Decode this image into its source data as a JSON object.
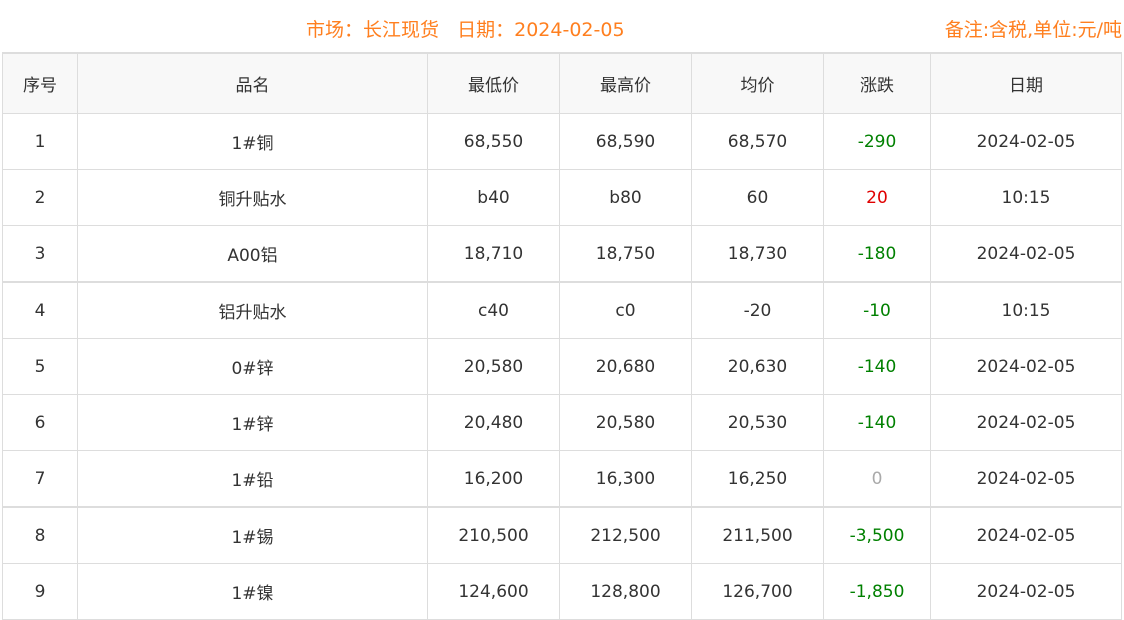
{
  "header": {
    "title": "市场：长江现货   日期：2024-02-05",
    "note": "备注:含税,单位:元/吨"
  },
  "colors": {
    "accent": "#ff7f1f",
    "down": "#008000",
    "up": "#e00000",
    "flat": "#aaaaaa"
  },
  "columns": [
    "序号",
    "品名",
    "最低价",
    "最高价",
    "均价",
    "涨跌",
    "日期"
  ],
  "rows": [
    {
      "no": "1",
      "name": "1#铜",
      "low": "68,550",
      "high": "68,590",
      "avg": "68,570",
      "change": "-290",
      "trend": "down",
      "date": "2024-02-05"
    },
    {
      "no": "2",
      "name": "铜升贴水",
      "low": "b40",
      "high": "b80",
      "avg": "60",
      "change": "20",
      "trend": "up",
      "date": "10:15"
    },
    {
      "no": "3",
      "name": "A00铝",
      "low": "18,710",
      "high": "18,750",
      "avg": "18,730",
      "change": "-180",
      "trend": "down",
      "date": "2024-02-05"
    },
    {
      "no": "4",
      "name": "铝升贴水",
      "low": "c40",
      "high": "c0",
      "avg": "-20",
      "change": "-10",
      "trend": "down",
      "date": "10:15"
    },
    {
      "no": "5",
      "name": "0#锌",
      "low": "20,580",
      "high": "20,680",
      "avg": "20,630",
      "change": "-140",
      "trend": "down",
      "date": "2024-02-05"
    },
    {
      "no": "6",
      "name": "1#锌",
      "low": "20,480",
      "high": "20,580",
      "avg": "20,530",
      "change": "-140",
      "trend": "down",
      "date": "2024-02-05"
    },
    {
      "no": "7",
      "name": "1#铅",
      "low": "16,200",
      "high": "16,300",
      "avg": "16,250",
      "change": "0",
      "trend": "flat",
      "date": "2024-02-05"
    },
    {
      "no": "8",
      "name": "1#锡",
      "low": "210,500",
      "high": "212,500",
      "avg": "211,500",
      "change": "-3,500",
      "trend": "down",
      "date": "2024-02-05"
    },
    {
      "no": "9",
      "name": "1#镍",
      "low": "124,600",
      "high": "128,800",
      "avg": "126,700",
      "change": "-1,850",
      "trend": "down",
      "date": "2024-02-05"
    }
  ]
}
